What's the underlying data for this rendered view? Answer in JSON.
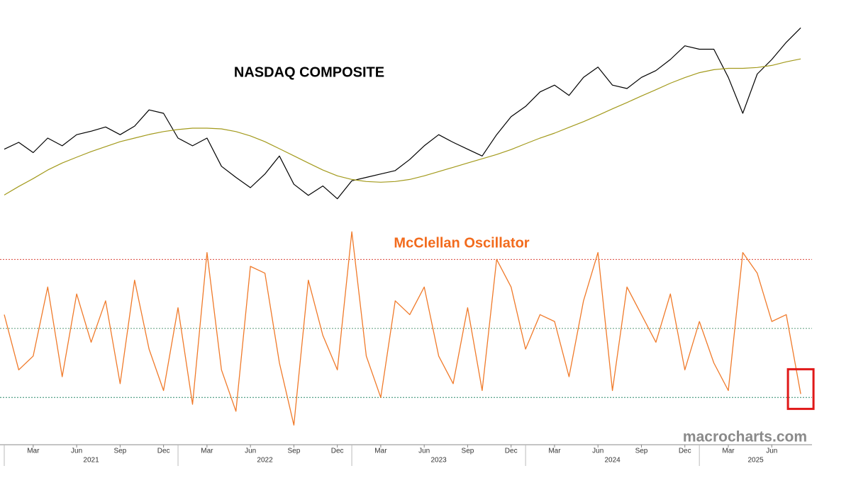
{
  "chart_data": {
    "type": "line",
    "title": "NASDAQ COMPOSITE",
    "annotations": [
      {
        "text": "McClellan Oscillator",
        "color": "#f26b1d"
      },
      {
        "text": "macrocharts.com",
        "color": "#8a8a8a"
      }
    ],
    "x": [
      "2021-01",
      "2021-02",
      "2021-03",
      "2021-04",
      "2021-05",
      "2021-06",
      "2021-07",
      "2021-08",
      "2021-09",
      "2021-10",
      "2021-11",
      "2021-12",
      "2022-01",
      "2022-02",
      "2022-03",
      "2022-04",
      "2022-05",
      "2022-06",
      "2022-07",
      "2022-08",
      "2022-09",
      "2022-10",
      "2022-11",
      "2022-12",
      "2023-01",
      "2023-02",
      "2023-03",
      "2023-04",
      "2023-05",
      "2023-06",
      "2023-07",
      "2023-08",
      "2023-09",
      "2023-10",
      "2023-11",
      "2023-12",
      "2024-01",
      "2024-02",
      "2024-03",
      "2024-04",
      "2024-05",
      "2024-06",
      "2024-07",
      "2024-08",
      "2024-09",
      "2024-10",
      "2024-11",
      "2024-12",
      "2025-01",
      "2025-02",
      "2025-03",
      "2025-04",
      "2025-05",
      "2025-06",
      "2025-07",
      "2025-08"
    ],
    "xticks": [
      {
        "value": "2021-03",
        "label": "Mar"
      },
      {
        "value": "2021-06",
        "label": "Jun"
      },
      {
        "value": "2021-09",
        "label": "Sep"
      },
      {
        "value": "2021-12",
        "label": "Dec"
      },
      {
        "value": "2022-03",
        "label": "Mar"
      },
      {
        "value": "2022-06",
        "label": "Jun"
      },
      {
        "value": "2022-09",
        "label": "Sep"
      },
      {
        "value": "2022-12",
        "label": "Dec"
      },
      {
        "value": "2023-03",
        "label": "Mar"
      },
      {
        "value": "2023-06",
        "label": "Jun"
      },
      {
        "value": "2023-09",
        "label": "Sep"
      },
      {
        "value": "2023-12",
        "label": "Dec"
      },
      {
        "value": "2024-03",
        "label": "Mar"
      },
      {
        "value": "2024-06",
        "label": "Jun"
      },
      {
        "value": "2024-09",
        "label": "Sep"
      },
      {
        "value": "2024-12",
        "label": "Dec"
      },
      {
        "value": "2025-03",
        "label": "Mar"
      },
      {
        "value": "2025-06",
        "label": "Jun"
      }
    ],
    "year_ticks": [
      "2021",
      "2022",
      "2023",
      "2024",
      "2025"
    ],
    "ylim": [
      9700,
      21300
    ],
    "y2lim": [
      -150,
      127
    ],
    "y2_reference_lines": [
      {
        "value": 100,
        "color": "#d9463a"
      },
      {
        "value": 0,
        "color": "#5f9e7f"
      },
      {
        "value": -100,
        "color": "#2b8a6c"
      }
    ],
    "highlight_color": "#e01818",
    "series": [
      {
        "color": "#000000",
        "values": [
          13400,
          13800,
          13200,
          14050,
          13600,
          14250,
          14450,
          14700,
          14250,
          14750,
          15700,
          15500,
          14050,
          13600,
          14050,
          12400,
          11750,
          11150,
          11950,
          13000,
          11350,
          10700,
          11250,
          10500,
          11550,
          11750,
          11950,
          12150,
          12800,
          13600,
          14250,
          13800,
          13400,
          13000,
          14250,
          15300,
          15900,
          16750,
          17150,
          16550,
          17600,
          18200,
          17150,
          16950,
          17600,
          18000,
          18650,
          19450,
          19250,
          19250,
          17600,
          15500,
          17800,
          18650,
          19650,
          20500
        ]
      },
      {
        "color": "#a39a1c",
        "values": [
          10720,
          11220,
          11680,
          12180,
          12590,
          12930,
          13260,
          13550,
          13840,
          14050,
          14260,
          14430,
          14550,
          14630,
          14630,
          14590,
          14430,
          14180,
          13840,
          13430,
          13010,
          12590,
          12180,
          11840,
          11630,
          11510,
          11470,
          11510,
          11630,
          11840,
          12090,
          12340,
          12590,
          12840,
          13090,
          13380,
          13720,
          14050,
          14340,
          14680,
          15010,
          15380,
          15760,
          16130,
          16510,
          16880,
          17260,
          17590,
          17880,
          18050,
          18130,
          18130,
          18180,
          18300,
          18510,
          18680
        ]
      },
      {
        "color": "#f07a2a",
        "axis": "y2",
        "values": [
          20,
          -60,
          -40,
          60,
          -70,
          50,
          -20,
          40,
          -80,
          70,
          -30,
          -90,
          30,
          -110,
          110,
          -60,
          -120,
          90,
          80,
          -50,
          -140,
          70,
          -10,
          -60,
          140,
          -40,
          -100,
          40,
          20,
          60,
          -40,
          -80,
          30,
          -90,
          100,
          60,
          -30,
          20,
          10,
          -70,
          40,
          110,
          -90,
          60,
          20,
          -20,
          50,
          -60,
          10,
          -50,
          -90,
          110,
          80,
          10,
          20,
          -95
        ]
      }
    ]
  }
}
